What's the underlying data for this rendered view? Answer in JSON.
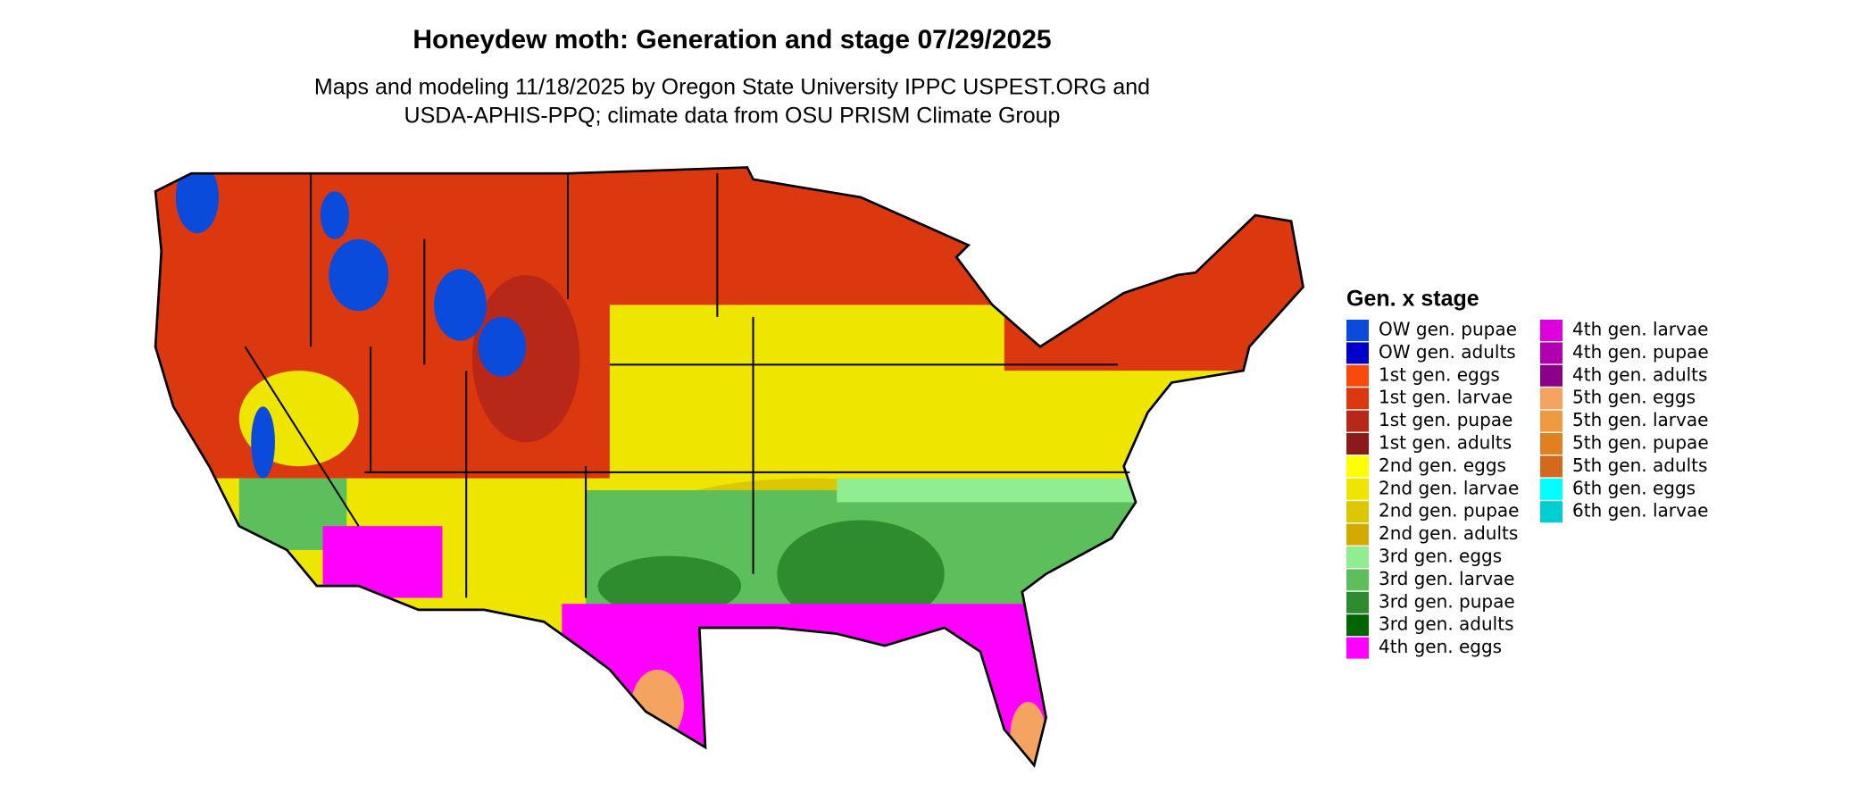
{
  "title": "Honeydew moth: Generation and stage 07/29/2025",
  "subtitle": [
    "Maps and modeling 11/18/2025 by Oregon State University IPPC USPEST.ORG and",
    "USDA-APHIS-PPQ; climate data from OSU PRISM Climate Group"
  ],
  "legend": {
    "title": "Gen. x stage",
    "items": [
      {
        "label": "OW gen. pupae",
        "color": "#0a4bdc"
      },
      {
        "label": "OW gen. adults",
        "color": "#0000c8"
      },
      {
        "label": "1st gen. eggs",
        "color": "#f84a0a"
      },
      {
        "label": "1st gen. larvae",
        "color": "#dc3810"
      },
      {
        "label": "1st gen. pupae",
        "color": "#b82818"
      },
      {
        "label": "1st gen. adults",
        "color": "#8b1a1a"
      },
      {
        "label": "2nd gen. eggs",
        "color": "#ffff00"
      },
      {
        "label": "2nd gen. larvae",
        "color": "#eee600"
      },
      {
        "label": "2nd gen. pupae",
        "color": "#dcc800"
      },
      {
        "label": "2nd gen. adults",
        "color": "#d2aa00"
      },
      {
        "label": "3rd gen. eggs",
        "color": "#90ee90"
      },
      {
        "label": "3rd gen. larvae",
        "color": "#5cbf5c"
      },
      {
        "label": "3rd gen. pupae",
        "color": "#2e8b2e"
      },
      {
        "label": "3rd gen. adults",
        "color": "#006400"
      },
      {
        "label": "4th gen. eggs",
        "color": "#ff00ff"
      },
      {
        "label": "4th gen. larvae",
        "color": "#dd00dd"
      },
      {
        "label": "4th gen. pupae",
        "color": "#b000b0"
      },
      {
        "label": "4th gen. adults",
        "color": "#8b008b"
      },
      {
        "label": "5th gen. eggs",
        "color": "#f4a460"
      },
      {
        "label": "5th gen. larvae",
        "color": "#ee9a40"
      },
      {
        "label": "5th gen. pupae",
        "color": "#e08020"
      },
      {
        "label": "5th gen. adults",
        "color": "#d2691e"
      },
      {
        "label": "6th gen. eggs",
        "color": "#00ffff"
      },
      {
        "label": "6th gen. larvae",
        "color": "#00ced1"
      }
    ]
  }
}
